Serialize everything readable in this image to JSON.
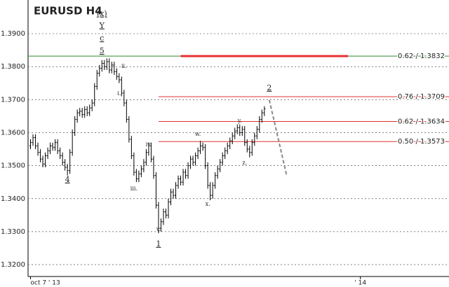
{
  "chart_data": {
    "type": "ohlc",
    "title": "EURUSD H4",
    "color": "#000000",
    "xlim": [
      -1,
      170
    ],
    "xticks": [
      {
        "value": 0,
        "label": "oct 7 ' 13"
      },
      {
        "value": 134,
        "label": "' 14"
      }
    ],
    "ylim": [
      1.3164,
      1.4002
    ],
    "yticks": [
      {
        "value": 1.32,
        "label": "1.3200"
      },
      {
        "value": 1.33,
        "label": "1.3300"
      },
      {
        "value": 1.34,
        "label": "1.3400"
      },
      {
        "value": 1.35,
        "label": "1.3500"
      },
      {
        "value": 1.36,
        "label": "1.3600"
      },
      {
        "value": 1.37,
        "label": "1.3700"
      },
      {
        "value": 1.38,
        "label": "1.3800"
      },
      {
        "value": 1.39,
        "label": "1.3900"
      }
    ],
    "grid": true,
    "open": [
      1.356,
      1.357,
      1.3585,
      1.356,
      1.354,
      1.352,
      1.3505,
      1.353,
      1.3545,
      1.356,
      1.3555,
      1.357,
      1.3545,
      1.353,
      1.351,
      1.3495,
      1.3485,
      1.354,
      1.36,
      1.364,
      1.366,
      1.3665,
      1.3655,
      1.367,
      1.366,
      1.3675,
      1.369,
      1.374,
      1.378,
      1.3795,
      1.381,
      1.38,
      1.3815,
      1.379,
      1.3805,
      1.3785,
      1.377,
      1.376,
      1.372,
      1.369,
      1.364,
      1.358,
      1.353,
      1.348,
      1.346,
      1.3475,
      1.349,
      1.351,
      1.354,
      1.356,
      1.352,
      1.347,
      1.338,
      1.331,
      1.333,
      1.336,
      1.335,
      1.339,
      1.342,
      1.341,
      1.344,
      1.346,
      1.345,
      1.348,
      1.347,
      1.35,
      1.352,
      1.351,
      1.353,
      1.3545,
      1.356,
      1.3555,
      1.35,
      1.344,
      1.341,
      1.344,
      1.347,
      1.349,
      1.351,
      1.353,
      1.3545,
      1.356,
      1.3575,
      1.359,
      1.3605,
      1.3615,
      1.36,
      1.361,
      1.357,
      1.355,
      1.354,
      1.357,
      1.359,
      1.361,
      1.364,
      1.366
    ],
    "high": [
      1.358,
      1.3595,
      1.3595,
      1.357,
      1.355,
      1.353,
      1.354,
      1.3555,
      1.357,
      1.357,
      1.358,
      1.358,
      1.3555,
      1.354,
      1.352,
      1.3505,
      1.355,
      1.361,
      1.365,
      1.367,
      1.3675,
      1.3675,
      1.368,
      1.368,
      1.3685,
      1.37,
      1.375,
      1.379,
      1.3805,
      1.382,
      1.382,
      1.3825,
      1.3825,
      1.3815,
      1.3815,
      1.3795,
      1.378,
      1.377,
      1.373,
      1.37,
      1.365,
      1.359,
      1.354,
      1.349,
      1.3485,
      1.35,
      1.352,
      1.355,
      1.357,
      1.357,
      1.353,
      1.348,
      1.339,
      1.334,
      1.337,
      1.337,
      1.34,
      1.343,
      1.343,
      1.345,
      1.347,
      1.347,
      1.349,
      1.349,
      1.351,
      1.353,
      1.353,
      1.354,
      1.3555,
      1.3575,
      1.357,
      1.3565,
      1.351,
      1.345,
      1.345,
      1.348,
      1.35,
      1.352,
      1.354,
      1.3555,
      1.357,
      1.3585,
      1.36,
      1.3615,
      1.3625,
      1.3625,
      1.362,
      1.362,
      1.358,
      1.356,
      1.358,
      1.36,
      1.362,
      1.365,
      1.367,
      1.368
    ],
    "low": [
      1.355,
      1.356,
      1.355,
      1.353,
      1.351,
      1.3495,
      1.3495,
      1.352,
      1.3535,
      1.3545,
      1.3545,
      1.3535,
      1.352,
      1.35,
      1.3485,
      1.347,
      1.3475,
      1.353,
      1.359,
      1.363,
      1.365,
      1.3645,
      1.3645,
      1.365,
      1.365,
      1.3665,
      1.368,
      1.373,
      1.377,
      1.3785,
      1.379,
      1.379,
      1.378,
      1.378,
      1.3775,
      1.376,
      1.375,
      1.371,
      1.368,
      1.363,
      1.357,
      1.352,
      1.347,
      1.345,
      1.345,
      1.3465,
      1.348,
      1.35,
      1.353,
      1.351,
      1.346,
      1.337,
      1.3295,
      1.33,
      1.332,
      1.334,
      1.334,
      1.338,
      1.34,
      1.34,
      1.343,
      1.344,
      1.344,
      1.346,
      1.346,
      1.349,
      1.35,
      1.35,
      1.352,
      1.3535,
      1.3545,
      1.349,
      1.343,
      1.3395,
      1.34,
      1.343,
      1.346,
      1.348,
      1.35,
      1.352,
      1.3535,
      1.355,
      1.3565,
      1.358,
      1.3595,
      1.359,
      1.359,
      1.356,
      1.354,
      1.3525,
      1.353,
      1.356,
      1.358,
      1.36,
      1.363,
      1.365
    ],
    "close": [
      1.357,
      1.3585,
      1.356,
      1.354,
      1.352,
      1.3505,
      1.353,
      1.3545,
      1.356,
      1.3555,
      1.357,
      1.3545,
      1.353,
      1.351,
      1.3495,
      1.3485,
      1.354,
      1.36,
      1.364,
      1.366,
      1.3665,
      1.3655,
      1.367,
      1.366,
      1.3675,
      1.369,
      1.374,
      1.378,
      1.3795,
      1.381,
      1.38,
      1.3815,
      1.379,
      1.3805,
      1.3785,
      1.377,
      1.376,
      1.372,
      1.369,
      1.364,
      1.358,
      1.353,
      1.348,
      1.346,
      1.3475,
      1.349,
      1.351,
      1.354,
      1.356,
      1.352,
      1.347,
      1.338,
      1.331,
      1.333,
      1.336,
      1.335,
      1.339,
      1.342,
      1.341,
      1.344,
      1.346,
      1.345,
      1.348,
      1.347,
      1.35,
      1.352,
      1.351,
      1.353,
      1.3545,
      1.356,
      1.3555,
      1.35,
      1.344,
      1.341,
      1.344,
      1.347,
      1.349,
      1.351,
      1.353,
      1.3545,
      1.356,
      1.3575,
      1.359,
      1.3605,
      1.3615,
      1.36,
      1.361,
      1.357,
      1.355,
      1.354,
      1.357,
      1.359,
      1.361,
      1.364,
      1.366,
      1.3672
    ],
    "levels": [
      {
        "value": 1.3832,
        "label": "0.62 / 1.3832",
        "color": "#2e8b2e",
        "start": -1
      },
      {
        "value": 1.3709,
        "label": "0.76 / 1.3709",
        "color": "#e03030",
        "start": 52
      },
      {
        "value": 1.3634,
        "label": "0.62 / 1.3634",
        "color": "#e03030",
        "start": 52
      },
      {
        "value": 1.3573,
        "label": "0.50 / 1.3573",
        "color": "#e03030",
        "start": 52
      }
    ],
    "segment": {
      "x": [
        61,
        129
      ],
      "y": [
        1.3832,
        1.3832
      ],
      "color": "#e83030"
    },
    "projection": {
      "x": [
        97,
        104
      ],
      "y": [
        1.3699,
        1.3472
      ],
      "color": "#888888"
    },
    "annotations": [
      {
        "text": "(x)",
        "x": 29,
        "y": 1.396,
        "color": "#2e8b2e"
      },
      {
        "text": "Y",
        "x": 29,
        "y": 1.3924,
        "color": "#a01020"
      },
      {
        "text": "c",
        "x": 29,
        "y": 1.3885,
        "color": "#2040c0"
      },
      {
        "text": "5",
        "x": 29,
        "y": 1.3847,
        "color": "#e03030"
      },
      {
        "text": "4",
        "x": 15,
        "y": 1.3457,
        "color": "#e03030"
      },
      {
        "text": "1",
        "x": 52,
        "y": 1.3262,
        "color": "#e03030"
      },
      {
        "text": "2",
        "x": 97,
        "y": 1.3735,
        "color": "#e03030"
      },
      {
        "text": "i.",
        "x": 36,
        "y": 1.3718,
        "color": "#808080"
      },
      {
        "text": "ii.",
        "x": 38,
        "y": 1.38,
        "color": "#808080"
      },
      {
        "text": "iii.",
        "x": 42,
        "y": 1.3429,
        "color": "#808080"
      },
      {
        "text": "iv.",
        "x": 48,
        "y": 1.3563,
        "color": "#808080"
      },
      {
        "text": "v.",
        "x": 52,
        "y": 1.3306,
        "color": "#808080"
      },
      {
        "text": "w.",
        "x": 68,
        "y": 1.3595,
        "color": "#808080"
      },
      {
        "text": "x.",
        "x": 72,
        "y": 1.3383,
        "color": "#808080"
      },
      {
        "text": "y.",
        "x": 85,
        "y": 1.3635,
        "color": "#808080"
      },
      {
        "text": "z.",
        "x": 87,
        "y": 1.3508,
        "color": "#808080"
      }
    ]
  }
}
